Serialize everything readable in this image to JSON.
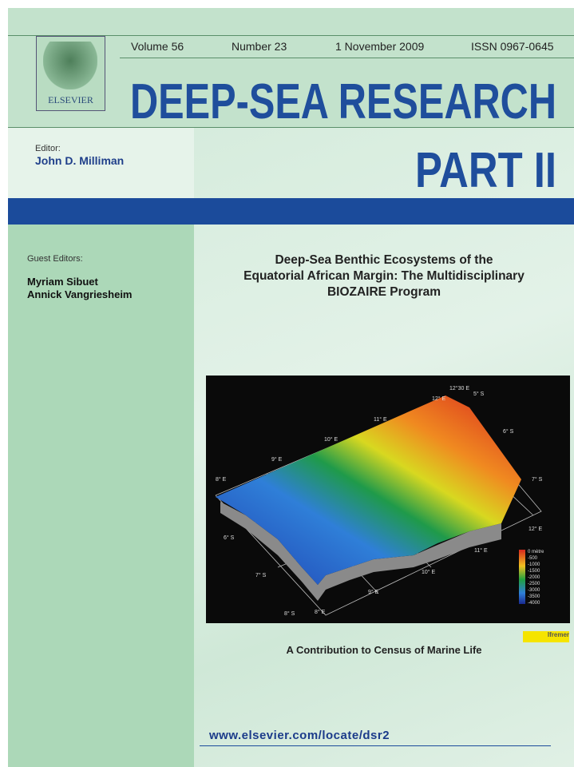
{
  "publisher": "ELSEVIER",
  "issue": {
    "volume": "Volume 56",
    "number": "Number 23",
    "date": "1 November 2009",
    "issn": "ISSN 0967-0645"
  },
  "journal": {
    "title": "DEEP-SEA RESEARCH",
    "part": "PART II"
  },
  "editor": {
    "label": "Editor:",
    "name": "John D. Milliman"
  },
  "guest_editors": {
    "label": "Guest Editors:",
    "names": [
      "Myriam Sibuet",
      "Annick Vangriesheim"
    ]
  },
  "issue_title": [
    "Deep-Sea Benthic Ecosystems of the",
    "Equatorial African Margin: The Multidisciplinary",
    "BIOZAIRE Program"
  ],
  "map": {
    "labels": [
      "12°30 E",
      "5° S",
      "12° E",
      "6° S",
      "11° E",
      "10° E",
      "9° E",
      "8° E",
      "7° S",
      "12° E",
      "11° E",
      "10° E",
      "9° E",
      "8° E",
      "8° S",
      "7° S",
      "6° S"
    ],
    "legend": [
      "0 mètre",
      "-500",
      "-1000",
      "-1500",
      "-2000",
      "-2500",
      "-3000",
      "-3500",
      "-4000"
    ],
    "credit": "Ifremer"
  },
  "contribution": "A Contribution to Census of Marine Life",
  "url": "www.elsevier.com/locate/dsr2"
}
